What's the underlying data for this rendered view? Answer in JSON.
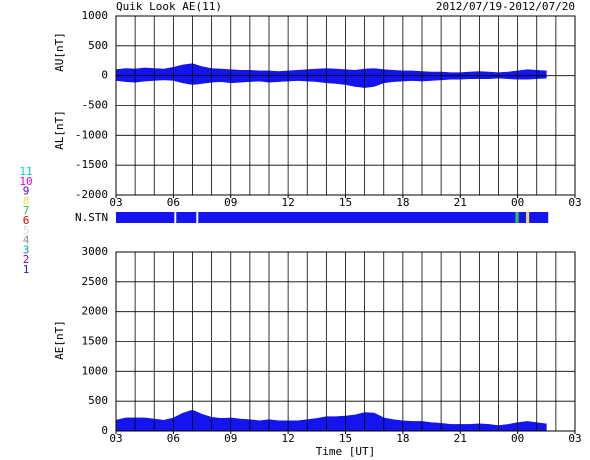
{
  "chart_data": [
    {
      "type": "band",
      "title": "Quik Look AE(11)",
      "date": "2012/07/19-2012/07/20",
      "ylabel_upper": "AU[nT]",
      "ylabel_lower": "AL[nT]",
      "color": "#1414f0",
      "xlim": [
        3,
        27
      ],
      "xticks": [
        {
          "value": 3,
          "label": "03"
        },
        {
          "value": 6,
          "label": "06"
        },
        {
          "value": 9,
          "label": "09"
        },
        12,
        15,
        18,
        21,
        {
          "value": 24,
          "label": "00"
        },
        {
          "value": 27,
          "label": "03"
        }
      ],
      "x_minor_grid_step": 1,
      "ylim": [
        -2000,
        1000
      ],
      "yticks": [
        -2000,
        -1500,
        -1000,
        -500,
        0,
        500,
        1000
      ],
      "grid": true,
      "x": [
        3,
        3.5,
        4,
        4.5,
        5,
        5.5,
        6,
        6.5,
        7,
        7.5,
        8,
        8.5,
        9,
        9.5,
        10,
        10.5,
        11,
        11.5,
        12,
        12.5,
        13,
        13.5,
        14,
        14.5,
        15,
        15.5,
        16,
        16.5,
        17,
        17.5,
        18,
        18.5,
        19,
        19.5,
        20,
        20.5,
        21,
        21.5,
        22,
        22.5,
        23,
        23.5,
        24,
        24.5,
        25,
        25.5
      ],
      "au": [
        100,
        120,
        110,
        130,
        120,
        110,
        140,
        180,
        200,
        150,
        120,
        110,
        100,
        90,
        90,
        80,
        80,
        70,
        80,
        90,
        100,
        110,
        120,
        110,
        100,
        90,
        110,
        120,
        100,
        90,
        80,
        80,
        70,
        60,
        60,
        50,
        50,
        60,
        70,
        60,
        50,
        60,
        80,
        100,
        90,
        80
      ],
      "al": [
        -80,
        -100,
        -110,
        -90,
        -80,
        -70,
        -80,
        -120,
        -150,
        -130,
        -110,
        -100,
        -120,
        -110,
        -100,
        -90,
        -110,
        -100,
        -90,
        -80,
        -90,
        -100,
        -120,
        -130,
        -150,
        -180,
        -200,
        -180,
        -120,
        -100,
        -90,
        -80,
        -90,
        -80,
        -70,
        -60,
        -60,
        -50,
        -50,
        -50,
        -40,
        -50,
        -60,
        -60,
        -50,
        -40
      ]
    },
    {
      "type": "area",
      "ylabel": "AE[nT]",
      "xlabel": "Time [UT]",
      "color": "#1414f0",
      "xlim": [
        3,
        27
      ],
      "xticks": [
        {
          "value": 3,
          "label": "03"
        },
        {
          "value": 6,
          "label": "06"
        },
        {
          "value": 9,
          "label": "09"
        },
        12,
        15,
        18,
        21,
        {
          "value": 24,
          "label": "00"
        },
        {
          "value": 27,
          "label": "03"
        }
      ],
      "x_minor_grid_step": 1,
      "ylim": [
        0,
        3000
      ],
      "yticks": [
        0,
        500,
        1000,
        1500,
        2000,
        2500,
        3000
      ],
      "grid": true,
      "x": [
        3,
        3.5,
        4,
        4.5,
        5,
        5.5,
        6,
        6.5,
        7,
        7.5,
        8,
        8.5,
        9,
        9.5,
        10,
        10.5,
        11,
        11.5,
        12,
        12.5,
        13,
        13.5,
        14,
        14.5,
        15,
        15.5,
        16,
        16.5,
        17,
        17.5,
        18,
        18.5,
        19,
        19.5,
        20,
        20.5,
        21,
        21.5,
        22,
        22.5,
        23,
        23.5,
        24,
        24.5,
        25,
        25.5
      ],
      "values": [
        180,
        220,
        220,
        220,
        200,
        180,
        220,
        300,
        350,
        280,
        230,
        210,
        220,
        200,
        190,
        170,
        190,
        170,
        170,
        170,
        190,
        210,
        240,
        240,
        250,
        270,
        310,
        300,
        220,
        190,
        170,
        160,
        160,
        140,
        130,
        110,
        110,
        110,
        120,
        110,
        90,
        110,
        140,
        160,
        140,
        120
      ]
    }
  ],
  "station_strip": {
    "label": "N.STN",
    "segments": [
      {
        "start": 3,
        "end": 6.05,
        "color": "#1414f0"
      },
      {
        "start": 6.15,
        "end": 7.2,
        "color": "#1414f0"
      },
      {
        "start": 7.3,
        "end": 23.9,
        "color": "#1414f0"
      },
      {
        "start": 23.9,
        "end": 24.05,
        "color": "#30c050"
      },
      {
        "start": 24.05,
        "end": 24.45,
        "color": "#1414f0"
      },
      {
        "start": 24.45,
        "end": 24.6,
        "color": "#f0e040"
      },
      {
        "start": 24.6,
        "end": 25.6,
        "color": "#1414f0"
      }
    ]
  },
  "station_legend": [
    {
      "label": "11",
      "color": "#00cccc"
    },
    {
      "label": "10",
      "color": "#e000e0"
    },
    {
      "label": "9",
      "color": "#5000c0"
    },
    {
      "label": "8",
      "color": "#e8e060"
    },
    {
      "label": "7",
      "color": "#30c050"
    },
    {
      "label": "6",
      "color": "#e00000"
    },
    {
      "label": "5",
      "color": "#d8d8d8"
    },
    {
      "label": "4",
      "color": "#909090"
    },
    {
      "label": "3",
      "color": "#00a0a0"
    },
    {
      "label": "2",
      "color": "#a000a0"
    },
    {
      "label": "1",
      "color": "#2020d0"
    }
  ]
}
